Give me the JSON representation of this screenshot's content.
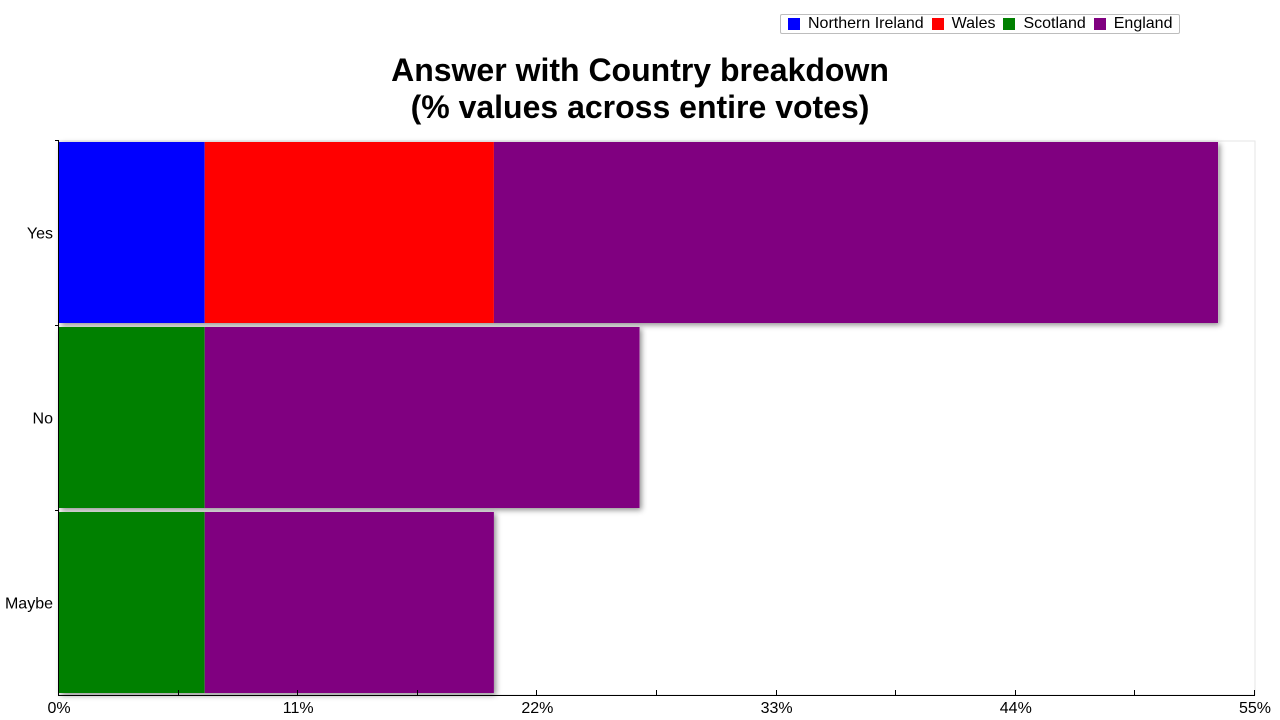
{
  "legend": {
    "items": [
      {
        "label": "Northern Ireland",
        "color": "#0000ff"
      },
      {
        "label": "Wales",
        "color": "#ff0000"
      },
      {
        "label": "Scotland",
        "color": "#008000"
      },
      {
        "label": "England",
        "color": "#800080"
      }
    ],
    "placement": "top-right"
  },
  "chart_data": {
    "type": "bar",
    "orientation": "horizontal",
    "stacked": true,
    "title": "Answer with Country breakdown",
    "subtitle": "(% values across entire votes)",
    "categories": [
      "Yes",
      "No",
      "Maybe"
    ],
    "series": [
      {
        "name": "Northern Ireland",
        "color": "#0000ff",
        "values": [
          6.7,
          0,
          0
        ]
      },
      {
        "name": "Wales",
        "color": "#ff0000",
        "values": [
          13.3,
          0,
          0
        ]
      },
      {
        "name": "Scotland",
        "color": "#008000",
        "values": [
          0,
          6.7,
          6.7
        ]
      },
      {
        "name": "England",
        "color": "#800080",
        "values": [
          33.3,
          20.0,
          13.3
        ]
      }
    ],
    "xlim": [
      0,
      55
    ],
    "xticks": [
      "0%",
      "11%",
      "22%",
      "33%",
      "44%",
      "55%"
    ],
    "xlabel": "",
    "ylabel": "",
    "grid": false
  }
}
